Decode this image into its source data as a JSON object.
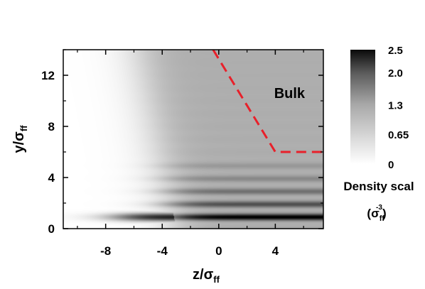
{
  "chart_data": {
    "type": "heatmap",
    "xlabel": {
      "main": "z/",
      "symbol": "σ",
      "sub": "ff"
    },
    "ylabel": {
      "main": "y/",
      "symbol": "σ",
      "sub": "ff"
    },
    "xlim": [
      -11,
      7.4
    ],
    "ylim": [
      0,
      14
    ],
    "x_ticks": [
      -8,
      -4,
      0,
      4
    ],
    "x_tick_labels": [
      "-8",
      "-4",
      "0",
      "4"
    ],
    "y_ticks": [
      0,
      4,
      8,
      12
    ],
    "y_tick_labels": [
      "0",
      "4",
      "8",
      "12"
    ],
    "colormap": "grayscale (white = 0, black = max)",
    "colorbar": {
      "range": [
        0,
        2.5
      ],
      "ticks": [
        0,
        0.65,
        1.3,
        2.0,
        2.5
      ],
      "tick_labels": [
        "0",
        "0.65",
        "1.3",
        "2.0",
        "2.5"
      ],
      "title": "Density scal",
      "unit": {
        "open": "(",
        "symbol": "σ",
        "sub": "ff",
        "sup": "-3",
        "close": ")"
      }
    },
    "density_profile": {
      "bulk_density": 0.65,
      "wall_peak_rows_y": [
        0.9,
        1.9,
        2.9,
        3.9,
        4.9
      ],
      "wall_peak_values": [
        2.5,
        1.6,
        1.25,
        1.0,
        0.85
      ],
      "interface_z_at_y0": -3.0,
      "interface_z_at_y14": -5.5
    },
    "boundary_line": {
      "color": "#e8202a",
      "style": "dashed",
      "points": [
        [
          -0.4,
          14
        ],
        [
          4.0,
          6.0
        ],
        [
          7.4,
          6.0
        ]
      ]
    },
    "annotations": [
      {
        "text": "Bulk",
        "x": 4.0,
        "y": 10.6
      }
    ]
  }
}
